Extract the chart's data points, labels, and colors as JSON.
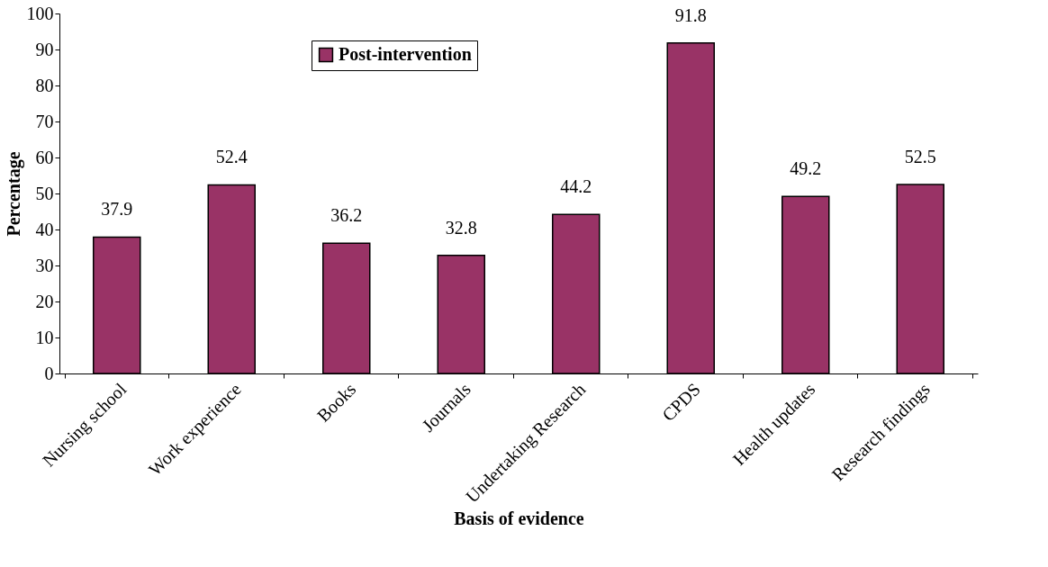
{
  "chart_data": {
    "type": "bar",
    "xlabel": "Basis of evidence",
    "ylabel": "Percentage",
    "categories": [
      "Nursing school",
      "Work experience",
      "Books",
      "Journals",
      "Undertaking Research",
      "CPDS",
      "Health updates",
      "Research findings"
    ],
    "series": [
      {
        "name": "Post-intervention",
        "color": "#993366",
        "values": [
          37.9,
          52.4,
          36.2,
          32.8,
          44.2,
          91.8,
          49.2,
          52.5
        ]
      }
    ],
    "ylim": [
      0,
      100
    ],
    "yticks": [
      0,
      10,
      20,
      30,
      40,
      50,
      60,
      70,
      80,
      90,
      100
    ],
    "data_labels": true,
    "legend": "top",
    "grid": false
  }
}
